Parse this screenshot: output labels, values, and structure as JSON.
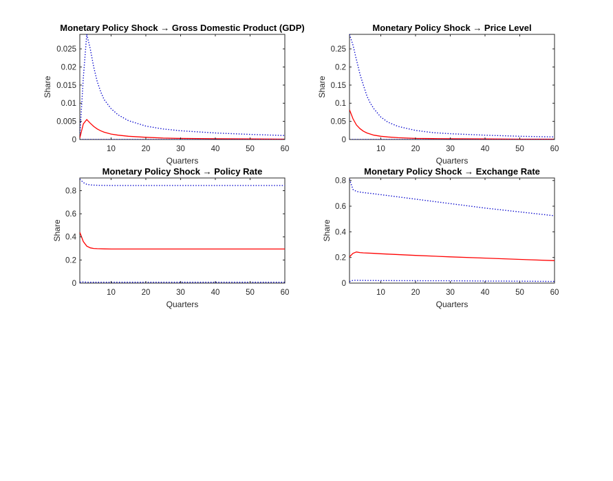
{
  "chart_data": [
    {
      "type": "line",
      "title": "Monetary Policy Shock → Gross Domestic Product (GDP)",
      "xlabel": "Quarters",
      "ylabel": "Share",
      "xlim": [
        1,
        60
      ],
      "ylim": [
        0,
        0.029
      ],
      "xticks": [
        "10",
        "20",
        "30",
        "40",
        "50",
        "60"
      ],
      "yticks": [
        "0",
        "0.005",
        "0.01",
        "0.015",
        "0.02",
        "0.025"
      ],
      "grid": false,
      "colors": {
        "median": "#ff0000",
        "bands": "#0000cc",
        "axes": "#262626"
      },
      "series": [
        {
          "style": "dotted",
          "color": "#0000cc",
          "x": [
            1,
            2,
            3,
            4,
            5,
            6,
            7,
            8,
            10,
            12,
            15,
            20,
            25,
            30,
            40,
            50,
            60
          ],
          "values": [
            0.001,
            0.017,
            0.029,
            0.025,
            0.02,
            0.016,
            0.0132,
            0.011,
            0.0085,
            0.0068,
            0.0052,
            0.0037,
            0.0029,
            0.0024,
            0.0018,
            0.0014,
            0.0011
          ]
        },
        {
          "style": "solid",
          "color": "#ff0000",
          "x": [
            1,
            2,
            3,
            4,
            5,
            6,
            7,
            8,
            10,
            12,
            15,
            20,
            25,
            30,
            40,
            50,
            60
          ],
          "values": [
            0.0004,
            0.0043,
            0.0055,
            0.0045,
            0.0036,
            0.0029,
            0.0024,
            0.002,
            0.0015,
            0.0012,
            0.0009,
            0.0006,
            0.0004,
            0.0003,
            0.0002,
            0.00015,
            0.0001
          ]
        },
        {
          "style": "dotted",
          "color": "#0000cc",
          "x": [
            1,
            60
          ],
          "values": [
            0.0,
            0.0
          ]
        }
      ]
    },
    {
      "type": "line",
      "title": "Monetary Policy Shock → Price Level",
      "xlabel": "Quarters",
      "ylabel": "Share",
      "xlim": [
        1,
        60
      ],
      "ylim": [
        0,
        0.29
      ],
      "xticks": [
        "10",
        "20",
        "30",
        "40",
        "50",
        "60"
      ],
      "yticks": [
        "0",
        "0.05",
        "0.1",
        "0.15",
        "0.2",
        "0.25"
      ],
      "grid": false,
      "series": [
        {
          "style": "dotted",
          "color": "#0000cc",
          "x": [
            1,
            2,
            3,
            4,
            5,
            6,
            7,
            8,
            10,
            12,
            15,
            20,
            25,
            30,
            40,
            50,
            60
          ],
          "values": [
            0.29,
            0.26,
            0.22,
            0.18,
            0.15,
            0.12,
            0.1,
            0.085,
            0.062,
            0.048,
            0.036,
            0.025,
            0.019,
            0.016,
            0.012,
            0.009,
            0.007
          ]
        },
        {
          "style": "solid",
          "color": "#ff0000",
          "x": [
            1,
            2,
            3,
            4,
            5,
            6,
            7,
            8,
            10,
            12,
            15,
            20,
            25,
            30,
            40,
            50,
            60
          ],
          "values": [
            0.082,
            0.057,
            0.04,
            0.03,
            0.023,
            0.018,
            0.015,
            0.012,
            0.009,
            0.007,
            0.005,
            0.003,
            0.0025,
            0.002,
            0.0015,
            0.001,
            0.001
          ]
        },
        {
          "style": "dotted",
          "color": "#0000cc",
          "x": [
            1,
            60
          ],
          "values": [
            0.0,
            0.0
          ]
        }
      ]
    },
    {
      "type": "line",
      "title": "Monetary Policy Shock → Policy Rate",
      "xlabel": "Quarters",
      "ylabel": "Share",
      "xlim": [
        1,
        60
      ],
      "ylim": [
        0,
        0.91
      ],
      "xticks": [
        "10",
        "20",
        "30",
        "40",
        "50",
        "60"
      ],
      "yticks": [
        "0",
        "0.2",
        "0.4",
        "0.6",
        "0.8"
      ],
      "grid": false,
      "series": [
        {
          "style": "dotted",
          "color": "#0000cc",
          "x": [
            1,
            2,
            3,
            4,
            5,
            6,
            8,
            10,
            15,
            20,
            30,
            40,
            50,
            60
          ],
          "values": [
            0.9,
            0.87,
            0.855,
            0.85,
            0.848,
            0.847,
            0.846,
            0.845,
            0.845,
            0.845,
            0.845,
            0.845,
            0.845,
            0.845
          ]
        },
        {
          "style": "solid",
          "color": "#ff0000",
          "x": [
            1,
            2,
            3,
            4,
            5,
            6,
            8,
            10,
            15,
            20,
            30,
            40,
            50,
            60
          ],
          "values": [
            0.44,
            0.36,
            0.32,
            0.305,
            0.3,
            0.298,
            0.296,
            0.295,
            0.295,
            0.295,
            0.295,
            0.295,
            0.295,
            0.295
          ]
        },
        {
          "style": "dotted",
          "color": "#0000cc",
          "x": [
            1,
            2,
            3,
            60
          ],
          "values": [
            0.008,
            0.01,
            0.008,
            0.008
          ]
        }
      ]
    },
    {
      "type": "line",
      "title": "Monetary Policy Shock → Exchange Rate",
      "xlabel": "Quarters",
      "ylabel": "Share",
      "xlim": [
        1,
        60
      ],
      "ylim": [
        0,
        0.82
      ],
      "xticks": [
        "10",
        "20",
        "30",
        "40",
        "50",
        "60"
      ],
      "yticks": [
        "0",
        "0.2",
        "0.4",
        "0.6",
        "0.8"
      ],
      "grid": false,
      "series": [
        {
          "style": "dotted",
          "color": "#0000cc",
          "x": [
            1,
            2,
            3,
            4,
            5,
            8,
            10,
            20,
            30,
            40,
            50,
            60
          ],
          "values": [
            0.81,
            0.73,
            0.715,
            0.71,
            0.706,
            0.697,
            0.69,
            0.655,
            0.62,
            0.585,
            0.555,
            0.525
          ]
        },
        {
          "style": "solid",
          "color": "#ff0000",
          "x": [
            1,
            2,
            3,
            4,
            5,
            8,
            10,
            20,
            30,
            40,
            50,
            60
          ],
          "values": [
            0.205,
            0.232,
            0.243,
            0.238,
            0.236,
            0.232,
            0.229,
            0.216,
            0.205,
            0.195,
            0.185,
            0.175
          ]
        },
        {
          "style": "dotted",
          "color": "#0000cc",
          "x": [
            1,
            2,
            3,
            5,
            10,
            20,
            30,
            40,
            50,
            60
          ],
          "values": [
            0.012,
            0.022,
            0.022,
            0.021,
            0.02,
            0.019,
            0.018,
            0.016,
            0.015,
            0.013
          ]
        }
      ]
    }
  ]
}
